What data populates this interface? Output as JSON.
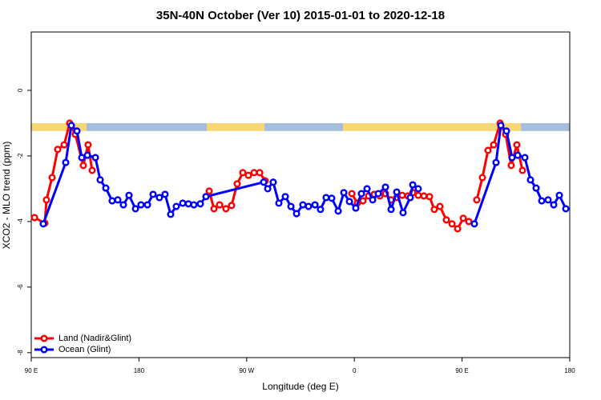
{
  "chart_data": {
    "type": "line",
    "title": "35N-40N October (Ver 10)   2015-01-01 to 2020-12-18",
    "xlabel": "Longitude (deg E)",
    "ylabel": "XCO2 - MLO trend (ppm)",
    "xlim": [
      90,
      540
    ],
    "xticks": [
      {
        "value": 90,
        "label": "90 E"
      },
      180,
      {
        "value": 270,
        "label": "90 W"
      },
      {
        "value": 360,
        "label": "0"
      },
      {
        "value": 450,
        "label": "90 E"
      },
      {
        "value": 540,
        "label": "180"
      }
    ],
    "ylim": [
      -8.15,
      1.78
    ],
    "yticks": [
      0,
      -2,
      -4,
      -6,
      -8
    ],
    "legend": "bottom-left",
    "band": {
      "range": [
        -1.24,
        -1.0
      ],
      "segments": [
        {
          "x": [
            90,
            136.2
          ],
          "color": "#f7d673"
        },
        {
          "x": [
            136.2,
            236.7
          ],
          "color": "#a4bedc"
        },
        {
          "x": [
            236.7,
            284.9
          ],
          "color": "#f7d673"
        },
        {
          "x": [
            284.9,
            350.5
          ],
          "color": "#a4bedc"
        },
        {
          "x": [
            350.5,
            499.2
          ],
          "color": "#f7d673"
        },
        {
          "x": [
            499.2,
            540
          ],
          "color": "#a4bedc"
        }
      ]
    },
    "series": [
      {
        "name": "Land (Nadir&Glint)",
        "color": "#ff0000",
        "x": [
          92.7,
          101.4,
          102.7,
          107.4,
          112.1,
          117.5,
          122.1,
          126.8,
          133.5,
          137.5,
          140.9,
          null,
          238.7,
          242.7,
          247.4,
          252.7,
          257.4,
          262.1,
          266.8,
          271.5,
          276.2,
          280.9,
          285.5,
          null,
          357.9,
          362.5,
          367.2,
          371.9,
          376.6,
          381.3,
          386,
          390.7,
          395.4,
          400,
          404.7,
          408.8,
          413.4,
          418.1,
          422.8,
          426.8,
          431.5,
          436.9,
          441.6,
          446.3,
          451,
          455.6,
          null,
          462.3,
          467,
          471.7,
          476.4,
          481.8,
          486.4,
          491.1,
          495.8,
          500.5
        ],
        "values": [
          -3.88,
          -4.05,
          -3.34,
          -2.66,
          -1.8,
          -1.66,
          -1.0,
          -1.34,
          -2.29,
          -1.66,
          -2.44,
          null,
          -3.07,
          -3.61,
          -3.49,
          -3.61,
          -3.51,
          -2.85,
          -2.51,
          -2.59,
          -2.51,
          -2.51,
          -2.76,
          null,
          -3.15,
          -3.44,
          -3.37,
          -3.22,
          -3.17,
          -3.22,
          -3.15,
          -3.34,
          -3.27,
          -3.2,
          -3.22,
          -3.12,
          -3.2,
          -3.22,
          -3.24,
          -3.63,
          -3.54,
          -3.95,
          -4.07,
          -4.22,
          -3.9,
          -4.0,
          null,
          -3.34,
          -2.66,
          -1.83,
          -1.66,
          -1.0,
          -1.34,
          -2.29,
          -1.66,
          -2.44
        ]
      },
      {
        "name": "Ocean (Glint)",
        "color": "#0000ff",
        "x": [
          100,
          118.8,
          123.5,
          128.2,
          132.2,
          136.9,
          143.6,
          147.6,
          152.3,
          157.6,
          162.3,
          167,
          171.7,
          177.1,
          181.7,
          187.1,
          191.8,
          197.1,
          201.8,
          206.5,
          211.2,
          216.6,
          221.3,
          225.9,
          231.3,
          236,
          284.2,
          287.6,
          292.2,
          296.9,
          302.3,
          307,
          311.7,
          317,
          321.7,
          327.1,
          331.7,
          336.4,
          341.1,
          346.5,
          351.2,
          355.9,
          361.2,
          365.9,
          370.6,
          375.3,
          380,
          386,
          390.7,
          395.4,
          400.7,
          406.7,
          408.8,
          413.4,
          null,
          460.3,
          478.4,
          482.4,
          487.1,
          491.8,
          496.5,
          502.5,
          507.2,
          511.9,
          516.6,
          521.9,
          526.6,
          531.3,
          536.7
        ],
        "values": [
          -4.07,
          -2.2,
          -1.07,
          -1.24,
          -2.05,
          -1.98,
          -2.05,
          -2.73,
          -2.98,
          -3.37,
          -3.34,
          -3.49,
          -3.2,
          -3.61,
          -3.49,
          -3.49,
          -3.17,
          -3.27,
          -3.17,
          -3.78,
          -3.54,
          -3.44,
          -3.46,
          -3.49,
          -3.46,
          -3.24,
          -2.8,
          -3.0,
          -2.8,
          -3.44,
          -3.24,
          -3.54,
          -3.76,
          -3.49,
          -3.54,
          -3.49,
          -3.63,
          -3.27,
          -3.29,
          -3.68,
          -3.12,
          -3.39,
          -3.59,
          -3.15,
          -3.0,
          -3.34,
          -3.15,
          -2.95,
          -3.63,
          -3.1,
          -3.73,
          -3.27,
          -2.88,
          -3.0,
          null,
          -4.07,
          -2.2,
          -1.07,
          -1.24,
          -2.05,
          -1.98,
          -2.05,
          -2.73,
          -2.98,
          -3.37,
          -3.34,
          -3.49,
          -3.2,
          -3.61
        ]
      }
    ]
  }
}
